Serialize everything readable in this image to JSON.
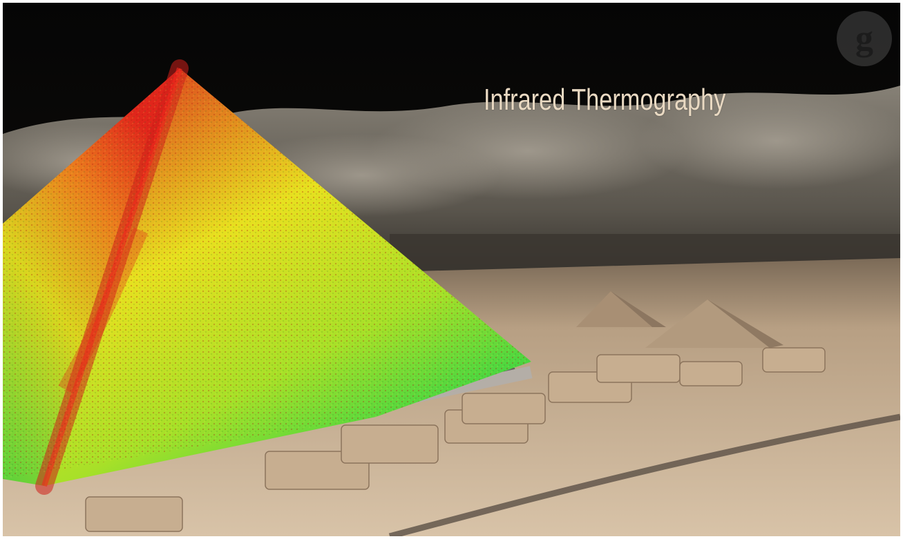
{
  "overlay_title": "Infrared Thermography",
  "logo": {
    "icon": "guardian-g-logo",
    "letter": "g"
  },
  "scene": {
    "subject": "pyramid-thermal-scan",
    "colors": {
      "sky": "#0b0a08",
      "haze": "#8a8479",
      "ground": "#c9b397",
      "heat_hot": "#e0231a",
      "heat_mid": "#e6e21c",
      "heat_cool": "#3ad63a",
      "title_text": "#e9d9c2"
    }
  }
}
